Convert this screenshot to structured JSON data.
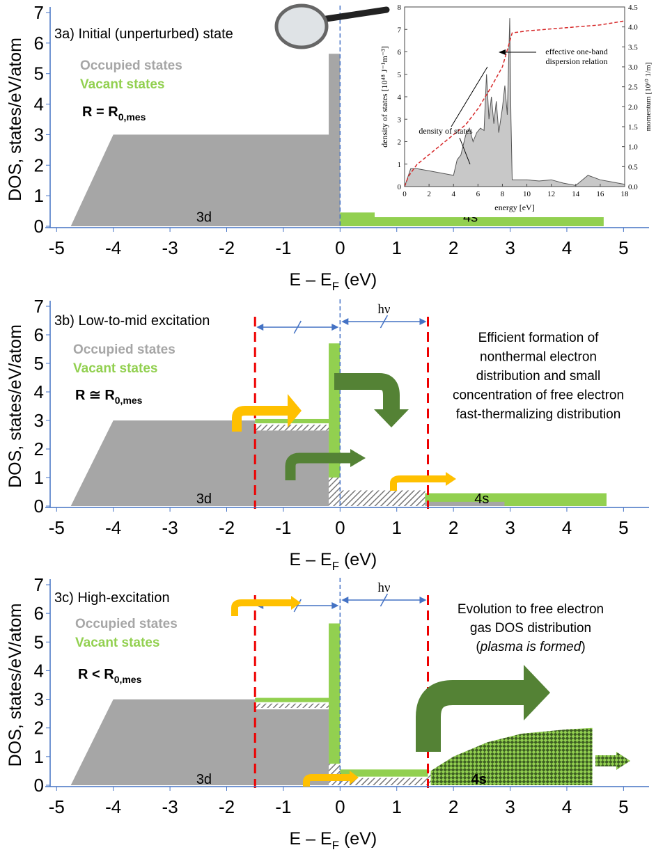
{
  "chart_data": [
    {
      "type": "dos",
      "title": "3a) Initial (unperturbed) state",
      "legend": [
        "Occupied states",
        "Vacant states"
      ],
      "colors": {
        "occupied": "#a6a6a6",
        "vacant": "#92d050"
      },
      "condition": [
        "R = R",
        "0,mes"
      ],
      "band_labels": [
        "3d",
        "4s"
      ],
      "xlabel": [
        "E – E",
        "F",
        " (eV)"
      ],
      "ylabel": "DOS, states/eV/atom",
      "xlim": [
        -5.2,
        5.45
      ],
      "ylim": [
        0,
        7
      ],
      "xticks": [
        -5,
        -4,
        -3,
        -2,
        -1,
        0,
        1,
        2,
        3,
        4,
        5
      ],
      "yticks": [
        0,
        1,
        2,
        3,
        4,
        5,
        6,
        7
      ],
      "occupied": {
        "x": [
          -4.75,
          -4,
          -0.2,
          -0.2,
          0,
          0
        ],
        "values": [
          0,
          3,
          3,
          5.65,
          5.65,
          0
        ]
      },
      "bands": [
        {
          "x": [
            0,
            4.65
          ],
          "y": [
            0,
            0.45
          ],
          "style": "vacant"
        }
      ]
    },
    {
      "type": "dos",
      "title": "3b) Low-to-mid excitation",
      "legend": [
        "Occupied states",
        "Vacant states"
      ],
      "colors": {
        "occupied": "#a6a6a6",
        "vacant": "#92d050"
      },
      "condition": [
        "R ≅ R",
        "0,mes"
      ],
      "band_labels": [
        "3d",
        "4s"
      ],
      "photon": "hν",
      "annotation": [
        "Efficient formation of",
        "nonthermal electron",
        "distribution and small",
        "concentration of free electron",
        "fast-thermalizing distribution"
      ],
      "xlabel": [
        "E – E",
        "F",
        " (eV)"
      ],
      "ylabel": "DOS, states/eV/atom",
      "xlim": [
        -5.2,
        5.45
      ],
      "ylim": [
        0,
        7
      ],
      "xticks": [
        -5,
        -4,
        -3,
        -2,
        -1,
        0,
        1,
        2,
        3,
        4,
        5
      ],
      "yticks": [
        0,
        1,
        2,
        3,
        4,
        5,
        6,
        7
      ],
      "markers": [
        -1.5,
        1.55
      ],
      "occupied": {
        "x": [
          -4.75,
          -4,
          -1.5,
          -1.5,
          -0.2,
          -0.2
        ],
        "values": [
          0,
          3,
          3,
          2.65,
          2.65,
          0
        ]
      },
      "bands": [
        {
          "x": [
            -0.2,
            0
          ],
          "y": [
            0,
            1
          ],
          "style": "hatch"
        },
        {
          "x": [
            -1.5,
            -0.2
          ],
          "y": [
            2.65,
            2.85
          ],
          "style": "hatch"
        },
        {
          "x": [
            -1.5,
            -0.2
          ],
          "y": [
            2.9,
            3.05
          ],
          "style": "vacant"
        },
        {
          "x": [
            -0.2,
            0
          ],
          "y": [
            1,
            5.7
          ],
          "style": "vacant"
        },
        {
          "x": [
            0,
            1.5
          ],
          "y": [
            0,
            0.55
          ],
          "style": "hatch"
        },
        {
          "x": [
            1.5,
            4.7
          ],
          "y": [
            0,
            0.45
          ],
          "style": "vacant"
        },
        {
          "x": [
            1.5,
            2.9
          ],
          "y": [
            0,
            0.15
          ],
          "style": "occupied"
        }
      ]
    },
    {
      "type": "dos",
      "title": "3c) High-excitation",
      "legend": [
        "Occupied states",
        "Vacant states"
      ],
      "colors": {
        "occupied": "#a6a6a6",
        "vacant": "#92d050"
      },
      "condition": [
        "R < R",
        "0,mes"
      ],
      "band_labels": [
        "3d",
        "4s"
      ],
      "photon": "hν",
      "annotation": [
        "Evolution to free electron",
        "gas DOS distribution",
        "(",
        "plasma is formed",
        ")"
      ],
      "xlabel": [
        "E – E",
        "F",
        " (eV)"
      ],
      "ylabel": "DOS, states/eV/atom",
      "xlim": [
        -5.2,
        5.45
      ],
      "ylim": [
        0,
        7
      ],
      "xticks": [
        -5,
        -4,
        -3,
        -2,
        -1,
        0,
        1,
        2,
        3,
        4,
        5
      ],
      "yticks": [
        0,
        1,
        2,
        3,
        4,
        5,
        6,
        7
      ],
      "markers": [
        -1.5,
        1.55
      ],
      "occupied": {
        "x": [
          -4.75,
          -4,
          -1.5,
          -1.5,
          -0.2,
          -0.2
        ],
        "values": [
          0,
          3,
          3,
          2.65,
          2.65,
          0
        ]
      },
      "bands": [
        {
          "x": [
            -0.2,
            0
          ],
          "y": [
            0,
            0.75
          ],
          "style": "hatch"
        },
        {
          "x": [
            -1.5,
            -0.2
          ],
          "y": [
            2.7,
            2.85
          ],
          "style": "hatch"
        },
        {
          "x": [
            -1.5,
            -0.2
          ],
          "y": [
            2.9,
            3.05
          ],
          "style": "vacant"
        },
        {
          "x": [
            -0.2,
            0
          ],
          "y": [
            0.75,
            5.65
          ],
          "style": "vacant"
        },
        {
          "x": [
            0,
            1.55
          ],
          "y": [
            0,
            0.25
          ],
          "style": "hatch"
        },
        {
          "x": [
            0,
            1.55
          ],
          "y": [
            0.3,
            0.55
          ],
          "style": "vacant"
        },
        {
          "x": [
            1.55,
            1.65
          ],
          "y": [
            0,
            0.5
          ],
          "style": "hatch"
        }
      ],
      "plasma": {
        "x": [
          1.6,
          2,
          2.6,
          3.2,
          4,
          4.45
        ],
        "values": [
          0.5,
          1.0,
          1.5,
          1.8,
          1.95,
          2.0
        ]
      }
    },
    {
      "type": "line",
      "xlabel": "energy [eV]",
      "ylabel": "density of states [10⁴⁸ J⁻¹m⁻³]",
      "y2label": "momentum [10¹⁰ 1/m]",
      "annotations": [
        "density of states",
        "effective one-band",
        "dispersion relation"
      ],
      "xlim": [
        0,
        18
      ],
      "ylim": [
        0,
        8
      ],
      "y2lim": [
        0,
        4.5
      ],
      "xticks": [
        0,
        2,
        4,
        6,
        8,
        10,
        12,
        14,
        16,
        18
      ],
      "yticks": [
        0,
        1,
        2,
        3,
        4,
        5,
        6,
        7,
        8
      ],
      "y2ticks": [
        {
          "value": 0,
          "label": "0.0"
        },
        0.5,
        {
          "value": 1,
          "label": "1.0"
        },
        1.5,
        {
          "value": 2,
          "label": "2.0"
        },
        2.5,
        {
          "value": 3,
          "label": "3.0"
        },
        3.5,
        {
          "value": 4,
          "label": "4.0"
        },
        4.5
      ],
      "dos": {
        "color": "#c8c8c8",
        "x": [
          0,
          0.5,
          1,
          2,
          3,
          4,
          4.3,
          4.6,
          5,
          5.3,
          5.6,
          5.9,
          6.2,
          6.5,
          6.7,
          6.9,
          7.1,
          7.3,
          7.5,
          7.7,
          8,
          8.2,
          8.4,
          8.6,
          8.7,
          8.8,
          9,
          10,
          11,
          12,
          13,
          14,
          15,
          16,
          17,
          18
        ],
        "values": [
          0,
          0.8,
          0.8,
          0.7,
          0.6,
          0.5,
          1.2,
          1.4,
          2.3,
          2.6,
          2.0,
          2.4,
          2.6,
          2.5,
          5.0,
          3.0,
          4.0,
          2.8,
          3.8,
          2.4,
          3.5,
          4.5,
          3.2,
          7.5,
          3.0,
          0.3,
          0.3,
          0.3,
          0.25,
          0.3,
          0.15,
          0.05,
          0.5,
          0.3,
          0.2,
          0.1
        ]
      },
      "momentum": {
        "color": "#d62728",
        "axis": "y2",
        "x": [
          0,
          0.3,
          1,
          2,
          3,
          4,
          5,
          6,
          7,
          8,
          8.8,
          10,
          12,
          14,
          16,
          18
        ],
        "values": [
          0,
          0.25,
          0.55,
          0.8,
          1.05,
          1.3,
          1.55,
          1.95,
          2.45,
          3.0,
          3.85,
          3.9,
          3.95,
          4.0,
          4.05,
          4.15
        ]
      }
    }
  ]
}
